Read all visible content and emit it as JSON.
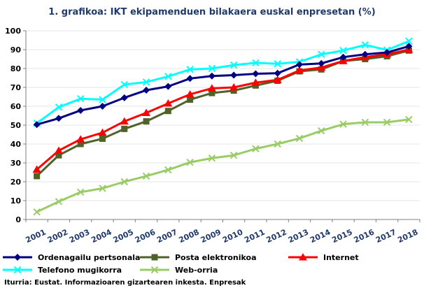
{
  "chart_data": {
    "type": "line",
    "title": "1. grafikoa: IKT ekipamenduen bilakaera euskal enpresetan (%)",
    "xlabel": "",
    "ylabel": "",
    "ylim": [
      0,
      100
    ],
    "yticks": [
      "0",
      "10",
      "20",
      "30",
      "40",
      "50",
      "60",
      "70",
      "80",
      "90",
      "100"
    ],
    "ytick_values": [
      0,
      10,
      20,
      30,
      40,
      50,
      60,
      70,
      80,
      90,
      100
    ],
    "categories": [
      "2001",
      "2002",
      "2003",
      "2004",
      "2005",
      "2006",
      "2007",
      "2008",
      "2009",
      "2010",
      "2011",
      "2012",
      "2013",
      "2014",
      "2015",
      "2016",
      "2017",
      "2018"
    ],
    "grid": true,
    "legend_position": "bottom",
    "series": [
      {
        "name": "Ordenagailu pertsonala",
        "color": "#000080",
        "marker": "diamond",
        "values": [
          50.3,
          53.6,
          57.8,
          60.0,
          64.5,
          68.5,
          70.5,
          74.7,
          76.0,
          76.5,
          77.2,
          77.5,
          82.1,
          82.7,
          86.0,
          87.5,
          88.5,
          91.8
        ]
      },
      {
        "name": "Posta elektronikoa",
        "color": "#4f6228",
        "marker": "square",
        "values": [
          23.0,
          34.0,
          40.0,
          42.8,
          48.0,
          52.0,
          57.5,
          63.5,
          67.0,
          68.3,
          71.0,
          73.5,
          78.5,
          79.5,
          84.0,
          85.0,
          86.5,
          89.5
        ]
      },
      {
        "name": "Internet",
        "color": "#ff0000",
        "marker": "triangle",
        "values": [
          26.5,
          36.5,
          42.5,
          46.0,
          52.0,
          56.5,
          61.5,
          66.3,
          69.5,
          70.0,
          72.5,
          74.0,
          79.0,
          80.5,
          84.0,
          86.0,
          87.5,
          90.0
        ]
      },
      {
        "name": "Telefono mugikorra",
        "color": "#00ffff",
        "marker": "x",
        "values": [
          51.0,
          59.5,
          64.0,
          63.5,
          71.5,
          72.8,
          75.8,
          79.5,
          80.0,
          81.8,
          83.0,
          82.5,
          83.5,
          87.5,
          89.5,
          92.5,
          89.8,
          94.5
        ]
      },
      {
        "name": "Web-orria",
        "color": "#99cc66",
        "marker": "x",
        "values": [
          4.0,
          9.5,
          14.5,
          16.5,
          20.0,
          23.0,
          26.3,
          30.3,
          32.5,
          34.0,
          37.5,
          40.0,
          43.0,
          47.0,
          50.5,
          51.5,
          51.5,
          53.0
        ]
      }
    ]
  },
  "source": "Iturria: Eustat. Informazioaren gizartearen inkesta. Enpresak"
}
